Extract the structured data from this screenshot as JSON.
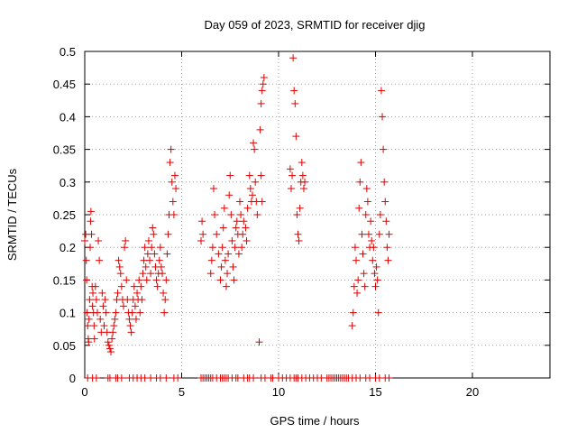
{
  "chart_data": {
    "type": "scatter",
    "title": "Day 059 of 2023, SRMTID for receiver djig",
    "xlabel": "GPS time / hours",
    "ylabel": "SRMTID / TECUs",
    "xlim": [
      0,
      24
    ],
    "ylim": [
      0,
      0.5
    ],
    "xticks": [
      0,
      5,
      10,
      15,
      20
    ],
    "xtick_labels": [
      "0",
      "5",
      "10",
      "15",
      "20"
    ],
    "yticks": [
      0,
      0.05,
      0.1,
      0.15,
      0.2,
      0.25,
      0.3,
      0.35,
      0.4,
      0.45,
      0.5
    ],
    "ytick_labels": [
      "0",
      "0.05",
      "0.1",
      "0.15",
      "0.2",
      "0.25",
      "0.3",
      "0.35",
      "0.4",
      "0.45",
      "0.5"
    ],
    "grid": true,
    "marker": "plus",
    "color": "#e00000",
    "series": [
      {
        "name": "SRMTID",
        "points": [
          [
            0.0,
            0.21
          ],
          [
            0.05,
            0.22
          ],
          [
            0.08,
            0.18
          ],
          [
            0.1,
            0.15
          ],
          [
            0.12,
            0.1
          ],
          [
            0.15,
            0.08
          ],
          [
            0.18,
            0.06
          ],
          [
            0.2,
            0.055
          ],
          [
            0.22,
            0.09
          ],
          [
            0.25,
            0.12
          ],
          [
            0.28,
            0.2
          ],
          [
            0.3,
            0.24
          ],
          [
            0.32,
            0.255
          ],
          [
            0.35,
            0.22
          ],
          [
            0.38,
            0.14
          ],
          [
            0.4,
            0.11
          ],
          [
            0.42,
            0.13
          ],
          [
            0.45,
            0.1
          ],
          [
            0.48,
            0.08
          ],
          [
            0.5,
            0.06
          ],
          [
            0.55,
            0.14
          ],
          [
            0.6,
            0.12
          ],
          [
            0.65,
            0.1
          ],
          [
            0.7,
            0.21
          ],
          [
            0.75,
            0.18
          ],
          [
            0.8,
            0.09
          ],
          [
            0.85,
            0.07
          ],
          [
            0.9,
            0.13
          ],
          [
            0.95,
            0.11
          ],
          [
            1.0,
            0.08
          ],
          [
            1.05,
            0.12
          ],
          [
            1.1,
            0.1
          ],
          [
            1.15,
            0.07
          ],
          [
            1.2,
            0.055
          ],
          [
            1.25,
            0.05
          ],
          [
            1.3,
            0.045
          ],
          [
            1.35,
            0.04
          ],
          [
            1.4,
            0.06
          ],
          [
            1.45,
            0.07
          ],
          [
            1.5,
            0.08
          ],
          [
            1.55,
            0.09
          ],
          [
            1.6,
            0.1
          ],
          [
            1.65,
            0.12
          ],
          [
            1.7,
            0.13
          ],
          [
            1.75,
            0.18
          ],
          [
            1.8,
            0.17
          ],
          [
            1.85,
            0.16
          ],
          [
            1.9,
            0.14
          ],
          [
            1.95,
            0.12
          ],
          [
            2.0,
            0.11
          ],
          [
            2.05,
            0.2
          ],
          [
            2.1,
            0.21
          ],
          [
            2.15,
            0.15
          ],
          [
            2.2,
            0.12
          ],
          [
            2.25,
            0.1
          ],
          [
            2.3,
            0.09
          ],
          [
            2.35,
            0.08
          ],
          [
            2.4,
            0.07
          ],
          [
            2.45,
            0.1
          ],
          [
            2.5,
            0.12
          ],
          [
            2.55,
            0.14
          ],
          [
            2.6,
            0.11
          ],
          [
            2.65,
            0.09
          ],
          [
            2.7,
            0.13
          ],
          [
            2.75,
            0.12
          ],
          [
            2.8,
            0.15
          ],
          [
            2.85,
            0.1
          ],
          [
            2.9,
            0.14
          ],
          [
            2.95,
            0.12
          ],
          [
            3.0,
            0.16
          ],
          [
            3.05,
            0.18
          ],
          [
            3.1,
            0.2
          ],
          [
            3.15,
            0.17
          ],
          [
            3.2,
            0.15
          ],
          [
            3.25,
            0.19
          ],
          [
            3.3,
            0.21
          ],
          [
            3.35,
            0.18
          ],
          [
            3.4,
            0.16
          ],
          [
            3.45,
            0.2
          ],
          [
            3.5,
            0.23
          ],
          [
            3.55,
            0.22
          ],
          [
            3.6,
            0.19
          ],
          [
            3.65,
            0.17
          ],
          [
            3.7,
            0.15
          ],
          [
            3.75,
            0.14
          ],
          [
            3.8,
            0.16
          ],
          [
            3.85,
            0.18
          ],
          [
            3.9,
            0.2
          ],
          [
            3.95,
            0.17
          ],
          [
            4.0,
            0.16
          ],
          [
            4.05,
            0.13
          ],
          [
            4.1,
            0.1
          ],
          [
            4.15,
            0.12
          ],
          [
            4.2,
            0.15
          ],
          [
            4.25,
            0.19
          ],
          [
            4.3,
            0.22
          ],
          [
            4.35,
            0.25
          ],
          [
            4.4,
            0.33
          ],
          [
            4.45,
            0.35
          ],
          [
            4.5,
            0.3
          ],
          [
            4.55,
            0.27
          ],
          [
            4.6,
            0.25
          ],
          [
            4.65,
            0.31
          ],
          [
            4.7,
            0.29
          ],
          [
            6.0,
            0.21
          ],
          [
            6.05,
            0.24
          ],
          [
            6.1,
            0.22
          ],
          [
            6.5,
            0.16
          ],
          [
            6.55,
            0.18
          ],
          [
            6.6,
            0.2
          ],
          [
            6.65,
            0.29
          ],
          [
            6.7,
            0.25
          ],
          [
            6.8,
            0.22
          ],
          [
            6.9,
            0.19
          ],
          [
            7.0,
            0.15
          ],
          [
            7.05,
            0.17
          ],
          [
            7.1,
            0.2
          ],
          [
            7.15,
            0.23
          ],
          [
            7.2,
            0.26
          ],
          [
            7.25,
            0.18
          ],
          [
            7.3,
            0.14
          ],
          [
            7.35,
            0.16
          ],
          [
            7.4,
            0.19
          ],
          [
            7.45,
            0.28
          ],
          [
            7.5,
            0.31
          ],
          [
            7.55,
            0.25
          ],
          [
            7.6,
            0.21
          ],
          [
            7.65,
            0.17
          ],
          [
            7.7,
            0.15
          ],
          [
            7.75,
            0.2
          ],
          [
            7.8,
            0.23
          ],
          [
            7.85,
            0.24
          ],
          [
            7.9,
            0.22
          ],
          [
            7.95,
            0.19
          ],
          [
            8.0,
            0.27
          ],
          [
            8.05,
            0.25
          ],
          [
            8.1,
            0.2
          ],
          [
            8.15,
            0.22
          ],
          [
            8.2,
            0.24
          ],
          [
            8.3,
            0.23
          ],
          [
            8.35,
            0.21
          ],
          [
            8.4,
            0.26
          ],
          [
            8.5,
            0.31
          ],
          [
            8.55,
            0.29
          ],
          [
            8.6,
            0.27
          ],
          [
            8.65,
            0.28
          ],
          [
            8.7,
            0.36
          ],
          [
            8.75,
            0.35
          ],
          [
            8.8,
            0.3
          ],
          [
            8.85,
            0.27
          ],
          [
            8.9,
            0.25
          ],
          [
            9.0,
            0.055
          ],
          [
            9.05,
            0.38
          ],
          [
            9.1,
            0.42
          ],
          [
            9.15,
            0.44
          ],
          [
            9.2,
            0.45
          ],
          [
            9.25,
            0.46
          ],
          [
            9.1,
            0.31
          ],
          [
            9.15,
            0.27
          ],
          [
            10.6,
            0.32
          ],
          [
            10.65,
            0.29
          ],
          [
            10.7,
            0.31
          ],
          [
            10.75,
            0.49
          ],
          [
            10.8,
            0.44
          ],
          [
            10.85,
            0.42
          ],
          [
            10.9,
            0.37
          ],
          [
            10.95,
            0.25
          ],
          [
            11.0,
            0.22
          ],
          [
            11.05,
            0.21
          ],
          [
            11.1,
            0.26
          ],
          [
            11.15,
            0.3
          ],
          [
            11.2,
            0.33
          ],
          [
            11.25,
            0.31
          ],
          [
            11.3,
            0.29
          ],
          [
            11.35,
            0.3
          ],
          [
            13.8,
            0.08
          ],
          [
            13.85,
            0.1
          ],
          [
            13.9,
            0.14
          ],
          [
            13.95,
            0.2
          ],
          [
            14.0,
            0.18
          ],
          [
            14.05,
            0.13
          ],
          [
            14.1,
            0.15
          ],
          [
            14.15,
            0.26
          ],
          [
            14.2,
            0.3
          ],
          [
            14.25,
            0.33
          ],
          [
            14.3,
            0.22
          ],
          [
            14.35,
            0.19
          ],
          [
            14.4,
            0.16
          ],
          [
            14.45,
            0.14
          ],
          [
            14.5,
            0.25
          ],
          [
            14.55,
            0.29
          ],
          [
            14.6,
            0.27
          ],
          [
            14.65,
            0.22
          ],
          [
            14.7,
            0.2
          ],
          [
            14.75,
            0.24
          ],
          [
            14.8,
            0.21
          ],
          [
            14.85,
            0.18
          ],
          [
            14.9,
            0.2
          ],
          [
            14.95,
            0.16
          ],
          [
            15.0,
            0.14
          ],
          [
            15.05,
            0.17
          ],
          [
            15.1,
            0.15
          ],
          [
            15.15,
            0.1
          ],
          [
            15.2,
            0.22
          ],
          [
            15.25,
            0.25
          ],
          [
            15.3,
            0.44
          ],
          [
            15.35,
            0.4
          ],
          [
            15.4,
            0.35
          ],
          [
            15.45,
            0.3
          ],
          [
            15.5,
            0.27
          ],
          [
            15.55,
            0.24
          ],
          [
            15.6,
            0.2
          ],
          [
            15.65,
            0.18
          ],
          [
            15.7,
            0.22
          ]
        ]
      }
    ],
    "zero_hours": [
      0.15,
      0.4,
      0.6,
      1.2,
      1.3,
      1.6,
      1.7,
      1.9,
      2.3,
      2.5,
      2.7,
      2.9,
      3.1,
      3.4,
      3.7,
      3.9,
      4.2,
      4.6,
      4.8,
      6.0,
      6.1,
      6.2,
      6.3,
      6.4,
      6.5,
      6.6,
      6.8,
      7.0,
      7.1,
      7.2,
      7.3,
      7.4,
      7.6,
      7.8,
      7.9,
      8.2,
      8.4,
      8.5,
      8.7,
      9.1,
      9.3,
      9.6,
      9.7,
      10.0,
      10.2,
      10.4,
      10.6,
      10.8,
      10.9,
      11.0,
      11.2,
      11.4,
      11.6,
      11.8,
      12.0,
      12.2,
      12.5,
      12.6,
      12.7,
      12.8,
      12.9,
      13.0,
      13.1,
      13.2,
      13.3,
      13.4,
      13.5,
      13.6,
      13.8,
      14.0,
      14.2,
      14.5,
      14.7,
      15.0,
      15.2,
      15.5,
      15.7
    ]
  }
}
